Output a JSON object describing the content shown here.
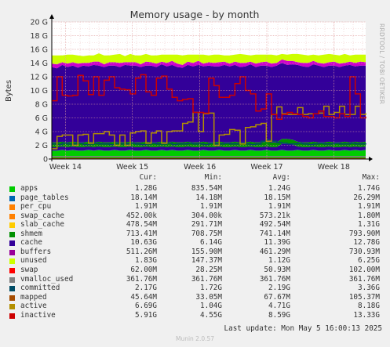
{
  "chart_data": {
    "type": "area",
    "title": "Memory usage - by month",
    "ylabel": "Bytes",
    "ylim": [
      0,
      20
    ],
    "y_unit": "G",
    "y_ticks": [
      "0",
      "2 G",
      "4 G",
      "6 G",
      "8 G",
      "10 G",
      "12 G",
      "14 G",
      "16 G",
      "18 G",
      "20 G"
    ],
    "x_ticks": [
      "Week 14",
      "Week 15",
      "Week 16",
      "Week 17",
      "Week 18"
    ],
    "x_tick_values": [
      2.6,
      15.4,
      28.3,
      41.1,
      53.9
    ],
    "xlim": [
      0,
      60
    ],
    "grid": true,
    "stacked_series": [
      {
        "name": "apps",
        "color": "#00cc00",
        "values": [
          1.2,
          1.2,
          1.3,
          1.2,
          1.3,
          1.2,
          1.2,
          1.3,
          1.2,
          1.3,
          1.2,
          1.2,
          1.3,
          1.2,
          1.2,
          1.3,
          1.2,
          1.2,
          1.3,
          1.2,
          1.2,
          1.3,
          1.2,
          1.3,
          1.2,
          1.2,
          1.3,
          1.2,
          1.2,
          1.3,
          1.2,
          1.2,
          1.3,
          1.2,
          1.2,
          1.3,
          1.2,
          1.2,
          1.3,
          1.2,
          1.2,
          1.3,
          1.2,
          1.2,
          1.3,
          1.2,
          1.2,
          1.3,
          1.2,
          1.2,
          1.3,
          1.2,
          1.2,
          1.3,
          1.2,
          1.2,
          1.3,
          1.2,
          1.3,
          1.2,
          1.3
        ]
      },
      {
        "name": "page_tables",
        "color": "#0066b3",
        "values": [
          0.02,
          0.02,
          0.02,
          0.02,
          0.02,
          0.02,
          0.02,
          0.02,
          0.02,
          0.02,
          0.02,
          0.02,
          0.02,
          0.02,
          0.02,
          0.02,
          0.02,
          0.02,
          0.02,
          0.02,
          0.02,
          0.02,
          0.02,
          0.02,
          0.02,
          0.02,
          0.02,
          0.02,
          0.02,
          0.02,
          0.02,
          0.02,
          0.02,
          0.02,
          0.02,
          0.02,
          0.02,
          0.02,
          0.02,
          0.02,
          0.02,
          0.02,
          0.02,
          0.02,
          0.02,
          0.02,
          0.02,
          0.02,
          0.02,
          0.02,
          0.02,
          0.02,
          0.02,
          0.02,
          0.02,
          0.02,
          0.02,
          0.02,
          0.02,
          0.02,
          0.02
        ]
      },
      {
        "name": "per_cpu",
        "color": "#ff8000",
        "values": [
          0.002,
          0.002,
          0.002,
          0.002,
          0.002,
          0.002,
          0.002,
          0.002,
          0.002,
          0.002,
          0.002,
          0.002,
          0.002,
          0.002,
          0.002,
          0.002,
          0.002,
          0.002,
          0.002,
          0.002,
          0.002,
          0.002,
          0.002,
          0.002,
          0.002,
          0.002,
          0.002,
          0.002,
          0.002,
          0.002,
          0.002,
          0.002,
          0.002,
          0.002,
          0.002,
          0.002,
          0.002,
          0.002,
          0.002,
          0.002,
          0.002,
          0.002,
          0.002,
          0.002,
          0.002,
          0.002,
          0.002,
          0.002,
          0.002,
          0.002,
          0.002,
          0.002,
          0.002,
          0.002,
          0.002,
          0.002,
          0.002,
          0.002,
          0.002,
          0.002,
          0.002
        ]
      },
      {
        "name": "swap_cache",
        "color": "#ffcc00",
        "values": [
          0.0005,
          0.0005,
          0.0005,
          0.0005,
          0.0005,
          0.0005,
          0.0005,
          0.0005,
          0.0005,
          0.0005,
          0.0005,
          0.0005,
          0.0005,
          0.0005,
          0.0005,
          0.0005,
          0.0005,
          0.0005,
          0.0005,
          0.0005,
          0.0005,
          0.0005,
          0.0005,
          0.0005,
          0.0005,
          0.0005,
          0.0005,
          0.0005,
          0.0005,
          0.0005,
          0.0005,
          0.0005,
          0.0005,
          0.0005,
          0.0005,
          0.0005,
          0.0005,
          0.0005,
          0.0005,
          0.0005,
          0.0005,
          0.0005,
          0.0005,
          0.0005,
          0.0005,
          0.0005,
          0.0005,
          0.0005,
          0.0005,
          0.0005,
          0.0005,
          0.0005,
          0.0005,
          0.0005,
          0.0005,
          0.0005,
          0.0005,
          0.0005,
          0.0005,
          0.0005,
          0.0005
        ]
      },
      {
        "name": "slab_cache",
        "color": "#330099",
        "values": [
          0.5,
          0.5,
          0.5,
          0.5,
          0.5,
          0.5,
          0.5,
          0.5,
          0.5,
          0.5,
          0.5,
          0.5,
          0.5,
          0.5,
          0.5,
          0.5,
          0.5,
          0.5,
          0.5,
          0.5,
          0.5,
          0.5,
          0.5,
          0.5,
          0.5,
          0.5,
          0.5,
          0.5,
          0.5,
          0.5,
          0.5,
          0.5,
          0.5,
          0.5,
          0.5,
          0.5,
          0.5,
          0.5,
          0.5,
          0.5,
          0.5,
          0.5,
          0.5,
          0.5,
          0.9,
          1.0,
          0.9,
          0.5,
          0.5,
          0.5,
          0.5,
          0.5,
          0.5,
          0.5,
          0.5,
          0.5,
          0.5,
          0.5,
          0.5,
          0.5,
          0.5
        ]
      },
      {
        "name": "shmem",
        "color": "#008f00",
        "values": [
          0.7,
          0.7,
          0.7,
          0.7,
          0.7,
          0.7,
          0.7,
          0.7,
          0.7,
          0.7,
          0.7,
          0.7,
          0.7,
          0.7,
          0.7,
          0.7,
          0.7,
          0.7,
          0.7,
          0.7,
          0.7,
          0.7,
          0.7,
          0.7,
          0.7,
          0.7,
          0.7,
          0.7,
          0.7,
          0.7,
          0.7,
          0.7,
          0.7,
          0.7,
          0.7,
          0.7,
          0.7,
          0.7,
          0.7,
          0.7,
          0.7,
          0.7,
          0.7,
          0.7,
          0.7,
          0.7,
          0.7,
          0.7,
          0.7,
          0.7,
          0.7,
          0.7,
          0.7,
          0.7,
          0.7,
          0.7,
          0.7,
          0.7,
          0.7,
          0.7,
          0.7
        ]
      },
      {
        "name": "cache",
        "color": "#330099",
        "values": [
          11.0,
          10.8,
          11.2,
          11.0,
          11.1,
          10.9,
          11.2,
          11.0,
          11.3,
          11.1,
          11.0,
          11.2,
          11.1,
          11.0,
          11.3,
          11.1,
          11.2,
          11.0,
          11.1,
          11.2,
          11.0,
          11.3,
          11.1,
          11.2,
          11.0,
          10.9,
          11.2,
          11.1,
          11.3,
          11.0,
          11.2,
          11.1,
          11.0,
          11.3,
          11.1,
          11.2,
          11.0,
          11.1,
          11.3,
          11.0,
          11.2,
          11.1,
          11.0,
          11.2,
          11.1,
          10.8,
          11.0,
          11.2,
          11.1,
          11.0,
          11.3,
          11.2,
          11.0,
          11.1,
          11.2,
          11.0,
          11.1,
          11.3,
          11.0,
          11.2,
          11.1
        ]
      },
      {
        "name": "buffers",
        "color": "#cc00cc",
        "values": [
          0.5,
          0.6,
          0.4,
          0.5,
          0.5,
          0.6,
          0.4,
          0.5,
          0.5,
          0.6,
          0.4,
          0.5,
          0.5,
          0.6,
          0.4,
          0.5,
          0.5,
          0.4,
          0.6,
          0.5,
          0.5,
          0.4,
          0.5,
          0.6,
          0.5,
          0.4,
          0.5,
          0.5,
          0.6,
          0.4,
          0.5,
          0.5,
          0.6,
          0.5,
          0.4,
          0.5,
          0.6,
          0.5,
          0.4,
          0.5,
          0.5,
          0.6,
          0.5,
          0.4,
          0.5,
          0.6,
          0.5,
          0.4,
          0.5,
          0.6,
          0.5,
          0.4,
          0.5,
          0.5,
          0.6,
          0.5,
          0.4,
          0.5,
          0.5,
          0.6,
          0.5
        ]
      },
      {
        "name": "unused",
        "color": "#ccff00",
        "values": [
          1.2,
          1.3,
          1.0,
          1.3,
          1.1,
          1.2,
          1.0,
          1.1,
          0.9,
          1.2,
          1.3,
          1.0,
          1.1,
          1.3,
          0.9,
          1.2,
          1.0,
          1.3,
          1.1,
          1.0,
          1.2,
          1.0,
          1.2,
          0.9,
          1.3,
          1.4,
          1.0,
          1.2,
          0.9,
          1.3,
          1.0,
          1.2,
          1.1,
          0.9,
          1.2,
          1.0,
          1.3,
          1.2,
          0.9,
          1.3,
          1.1,
          1.0,
          1.3,
          1.1,
          0.8,
          0.9,
          1.0,
          1.2,
          1.2,
          1.1,
          0.9,
          1.1,
          1.3,
          1.2,
          1.0,
          1.2,
          1.3,
          0.9,
          1.2,
          1.0,
          1.1
        ]
      }
    ],
    "line_series": [
      {
        "name": "swap",
        "color": "#ff0000",
        "values": [
          0.06,
          0.06,
          0.06,
          0.06,
          0.06,
          0.06,
          0.06,
          0.06,
          0.06,
          0.06,
          0.06,
          0.06,
          0.06,
          0.06,
          0.06,
          0.06,
          0.06,
          0.06,
          0.06,
          0.06,
          0.06,
          0.06,
          0.06,
          0.06,
          0.06,
          0.06,
          0.06,
          0.06,
          0.06,
          0.06,
          0.06,
          0.06,
          0.06,
          0.06,
          0.06,
          0.06,
          0.06,
          0.06,
          0.06,
          0.06,
          0.06,
          0.06,
          0.06,
          0.06,
          0.06,
          0.06,
          0.06,
          0.06,
          0.06,
          0.06,
          0.06,
          0.06,
          0.06,
          0.06,
          0.06,
          0.06,
          0.06,
          0.06,
          0.06,
          0.06,
          0.06
        ]
      },
      {
        "name": "vmalloc_used",
        "color": "#808080",
        "values": [
          0.36,
          0.36,
          0.36,
          0.36,
          0.36,
          0.36,
          0.36,
          0.36,
          0.36,
          0.36,
          0.36,
          0.36,
          0.36,
          0.36,
          0.36,
          0.36,
          0.36,
          0.36,
          0.36,
          0.36,
          0.36,
          0.36,
          0.36,
          0.36,
          0.36,
          0.36,
          0.36,
          0.36,
          0.36,
          0.36,
          0.36,
          0.36,
          0.36,
          0.36,
          0.36,
          0.36,
          0.36,
          0.36,
          0.36,
          0.36,
          0.36,
          0.36,
          0.36,
          0.36,
          0.36,
          0.36,
          0.36,
          0.36,
          0.36,
          0.36,
          0.36,
          0.36,
          0.36,
          0.36,
          0.36,
          0.36,
          0.36,
          0.36,
          0.36,
          0.36,
          0.36
        ]
      },
      {
        "name": "committed",
        "color": "#004c66",
        "values": [
          2.2,
          2.1,
          2.3,
          2.2,
          2.2,
          2.3,
          2.1,
          2.2,
          2.3,
          2.2,
          2.2,
          2.1,
          2.3,
          2.2,
          2.2,
          2.3,
          2.2,
          2.1,
          2.2,
          2.3,
          2.2,
          2.2,
          2.3,
          2.1,
          2.2,
          2.2,
          2.3,
          2.2,
          2.2,
          2.1,
          2.3,
          2.2,
          2.2,
          2.3,
          2.2,
          2.2,
          2.3,
          2.2,
          2.1,
          2.2,
          2.6,
          2.8,
          2.6,
          2.4,
          2.3,
          2.2,
          2.2,
          2.3,
          2.2,
          2.1,
          2.2,
          2.3,
          2.2,
          2.2,
          2.3,
          2.2,
          2.2,
          2.3,
          2.2,
          2.2,
          2.3
        ]
      },
      {
        "name": "mapped",
        "color": "#a64c00",
        "values": [
          0.05,
          0.05,
          0.05,
          0.05,
          0.05,
          0.05,
          0.05,
          0.05,
          0.05,
          0.05,
          0.05,
          0.05,
          0.05,
          0.05,
          0.05,
          0.05,
          0.05,
          0.05,
          0.05,
          0.05,
          0.05,
          0.05,
          0.05,
          0.05,
          0.05,
          0.05,
          0.05,
          0.05,
          0.05,
          0.05,
          0.05,
          0.05,
          0.05,
          0.05,
          0.05,
          0.05,
          0.05,
          0.05,
          0.05,
          0.05,
          0.05,
          0.05,
          0.05,
          0.05,
          0.05,
          0.05,
          0.05,
          0.05,
          0.05,
          0.05,
          0.05,
          0.05,
          0.05,
          0.05,
          0.05,
          0.05,
          0.05,
          0.05,
          0.05,
          0.05,
          0.05
        ]
      },
      {
        "name": "active",
        "color": "#b38f00",
        "values": [
          1.5,
          3.3,
          3.5,
          3.5,
          2.0,
          3.5,
          3.6,
          2.3,
          3.7,
          3.7,
          4.0,
          3.5,
          2.0,
          3.5,
          2.0,
          3.8,
          4.0,
          4.1,
          2.3,
          3.8,
          4.1,
          2.3,
          4.0,
          4.1,
          4.1,
          5.2,
          5.4,
          6.8,
          4.0,
          6.6,
          6.7,
          2.0,
          3.5,
          3.6,
          4.3,
          4.2,
          2.2,
          4.6,
          4.7,
          5.0,
          5.2,
          2.6,
          6.5,
          7.6,
          6.6,
          6.5,
          6.5,
          7.5,
          6.5,
          6.6,
          6.6,
          6.7,
          7.7,
          6.5,
          6.8,
          7.7,
          6.5,
          6.5,
          7.7,
          6.5,
          6.7
        ]
      },
      {
        "name": "inactive",
        "color": "#cc0000",
        "values": [
          8.5,
          12.0,
          9.3,
          9.2,
          9.3,
          12.2,
          11.4,
          9.4,
          12.0,
          9.3,
          11.5,
          12.0,
          10.4,
          10.2,
          10.1,
          9.5,
          11.8,
          12.3,
          9.8,
          9.3,
          11.8,
          12.1,
          10.2,
          9.0,
          8.5,
          8.7,
          8.8,
          6.8,
          6.8,
          6.7,
          11.8,
          10.7,
          9.0,
          9.0,
          9.3,
          11.0,
          12.0,
          10.0,
          9.5,
          7.0,
          7.3,
          9.5,
          6.5,
          5.8,
          6.5,
          6.8,
          6.6,
          6.5,
          6.2,
          6.0,
          6.6,
          7.0,
          6.2,
          6.2,
          6.0,
          6.6,
          6.2,
          12.0,
          9.5,
          6.0,
          6.2
        ]
      }
    ],
    "legend": {
      "headers": [
        "Cur:",
        "Min:",
        "Avg:",
        "Max:"
      ],
      "rows": [
        {
          "name": "apps",
          "color": "#00cc00",
          "cur": "1.28G",
          "min": "835.54M",
          "avg": "1.24G",
          "max": "1.74G"
        },
        {
          "name": "page_tables",
          "color": "#0066b3",
          "cur": "18.14M",
          "min": "14.18M",
          "avg": "18.15M",
          "max": "26.29M"
        },
        {
          "name": "per_cpu",
          "color": "#ff8000",
          "cur": "1.91M",
          "min": "1.91M",
          "avg": "1.91M",
          "max": "1.91M"
        },
        {
          "name": "swap_cache",
          "color": "#ff8000",
          "cur": "452.00k",
          "min": "304.00k",
          "avg": "573.21k",
          "max": "1.80M"
        },
        {
          "name": "slab_cache",
          "color": "#ffcc00",
          "cur": "478.54M",
          "min": "291.71M",
          "avg": "492.54M",
          "max": "1.31G"
        },
        {
          "name": "shmem",
          "color": "#008f00",
          "cur": "713.41M",
          "min": "708.75M",
          "avg": "741.14M",
          "max": "793.90M"
        },
        {
          "name": "cache",
          "color": "#330099",
          "cur": "10.63G",
          "min": "6.14G",
          "avg": "11.39G",
          "max": "12.78G"
        },
        {
          "name": "buffers",
          "color": "#990099",
          "cur": "511.26M",
          "min": "155.90M",
          "avg": "461.29M",
          "max": "730.93M"
        },
        {
          "name": "unused",
          "color": "#ccff00",
          "cur": "1.83G",
          "min": "147.37M",
          "avg": "1.12G",
          "max": "6.25G"
        },
        {
          "name": "swap",
          "color": "#ff0000",
          "cur": "62.00M",
          "min": "28.25M",
          "avg": "50.93M",
          "max": "102.00M"
        },
        {
          "name": "vmalloc_used",
          "color": "#808080",
          "cur": "361.76M",
          "min": "361.76M",
          "avg": "361.76M",
          "max": "361.76M"
        },
        {
          "name": "committed",
          "color": "#004c66",
          "cur": "2.17G",
          "min": "1.72G",
          "avg": "2.19G",
          "max": "3.36G"
        },
        {
          "name": "mapped",
          "color": "#a64c00",
          "cur": "45.64M",
          "min": "33.05M",
          "avg": "67.67M",
          "max": "105.37M"
        },
        {
          "name": "active",
          "color": "#b38f00",
          "cur": "6.69G",
          "min": "1.04G",
          "avg": "4.71G",
          "max": "8.18G"
        },
        {
          "name": "inactive",
          "color": "#cc0000",
          "cur": "5.91G",
          "min": "4.55G",
          "avg": "8.59G",
          "max": "13.33G"
        }
      ]
    }
  },
  "side_text": "RRDTOOL / TOBI OETIKER",
  "last_update": "Last update: Mon May  5 16:00:13 2025",
  "footer": "Munin 2.0.57"
}
